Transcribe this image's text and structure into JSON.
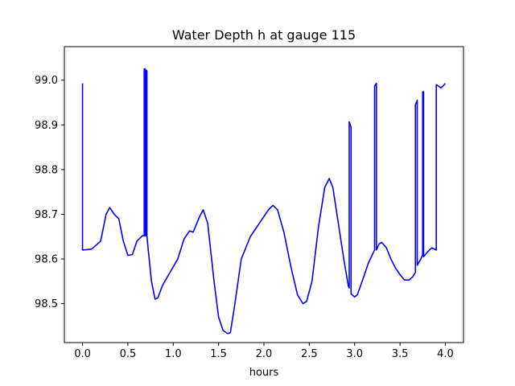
{
  "chart_data": {
    "type": "line",
    "title": "Water Depth h at gauge 115",
    "xlabel": "hours",
    "ylabel": "",
    "xlim": [
      -0.2,
      4.2
    ],
    "ylim": [
      98.413,
      99.075
    ],
    "xticks": [
      0.0,
      0.5,
      1.0,
      1.5,
      2.0,
      2.5,
      3.0,
      3.5,
      4.0
    ],
    "xtick_labels": [
      "0.0",
      "0.5",
      "1.0",
      "1.5",
      "2.0",
      "2.5",
      "3.0",
      "3.5",
      "4.0"
    ],
    "yticks": [
      98.5,
      98.6,
      98.7,
      98.8,
      98.9,
      99.0
    ],
    "ytick_labels": [
      "98.5",
      "98.6",
      "98.7",
      "98.8",
      "98.9",
      "99.0"
    ],
    "grid": false,
    "series": [
      {
        "color": "#0000ff",
        "points": [
          [
            0.0,
            98.993
          ],
          [
            0.0,
            98.62
          ],
          [
            0.1,
            98.622
          ],
          [
            0.2,
            98.64
          ],
          [
            0.26,
            98.7
          ],
          [
            0.3,
            98.715
          ],
          [
            0.35,
            98.7
          ],
          [
            0.4,
            98.69
          ],
          [
            0.45,
            98.64
          ],
          [
            0.5,
            98.608
          ],
          [
            0.55,
            98.61
          ],
          [
            0.6,
            98.64
          ],
          [
            0.66,
            98.652
          ],
          [
            0.68,
            98.652
          ],
          [
            0.68,
            99.025
          ],
          [
            0.69,
            99.025
          ],
          [
            0.69,
            98.652
          ],
          [
            0.7,
            98.652
          ],
          [
            0.7,
            99.023
          ],
          [
            0.71,
            99.02
          ],
          [
            0.71,
            98.652
          ],
          [
            0.72,
            98.63
          ],
          [
            0.76,
            98.55
          ],
          [
            0.8,
            98.51
          ],
          [
            0.83,
            98.513
          ],
          [
            0.88,
            98.54
          ],
          [
            0.95,
            98.565
          ],
          [
            1.05,
            98.6
          ],
          [
            1.12,
            98.645
          ],
          [
            1.18,
            98.663
          ],
          [
            1.22,
            98.66
          ],
          [
            1.28,
            98.69
          ],
          [
            1.33,
            98.71
          ],
          [
            1.38,
            98.68
          ],
          [
            1.45,
            98.55
          ],
          [
            1.5,
            98.47
          ],
          [
            1.55,
            98.44
          ],
          [
            1.6,
            98.433
          ],
          [
            1.63,
            98.435
          ],
          [
            1.68,
            98.5
          ],
          [
            1.75,
            98.6
          ],
          [
            1.85,
            98.65
          ],
          [
            1.95,
            98.68
          ],
          [
            2.05,
            98.71
          ],
          [
            2.1,
            98.72
          ],
          [
            2.15,
            98.71
          ],
          [
            2.22,
            98.66
          ],
          [
            2.3,
            98.58
          ],
          [
            2.37,
            98.52
          ],
          [
            2.43,
            98.5
          ],
          [
            2.47,
            98.505
          ],
          [
            2.53,
            98.55
          ],
          [
            2.6,
            98.67
          ],
          [
            2.67,
            98.76
          ],
          [
            2.72,
            98.78
          ],
          [
            2.76,
            98.76
          ],
          [
            2.82,
            98.68
          ],
          [
            2.88,
            98.6
          ],
          [
            2.93,
            98.54
          ],
          [
            2.94,
            98.535
          ],
          [
            2.94,
            98.907
          ],
          [
            2.96,
            98.895
          ],
          [
            2.96,
            98.522
          ],
          [
            3.0,
            98.515
          ],
          [
            3.03,
            98.52
          ],
          [
            3.1,
            98.56
          ],
          [
            3.15,
            98.59
          ],
          [
            3.2,
            98.612
          ],
          [
            3.22,
            98.62
          ],
          [
            3.22,
            98.987
          ],
          [
            3.24,
            98.993
          ],
          [
            3.24,
            98.62
          ],
          [
            3.27,
            98.634
          ],
          [
            3.3,
            98.637
          ],
          [
            3.35,
            98.625
          ],
          [
            3.4,
            98.6
          ],
          [
            3.45,
            98.58
          ],
          [
            3.5,
            98.565
          ],
          [
            3.55,
            98.553
          ],
          [
            3.6,
            98.553
          ],
          [
            3.64,
            98.56
          ],
          [
            3.67,
            98.57
          ],
          [
            3.67,
            98.945
          ],
          [
            3.69,
            98.955
          ],
          [
            3.69,
            98.586
          ],
          [
            3.73,
            98.6
          ],
          [
            3.75,
            98.61
          ],
          [
            3.75,
            98.974
          ],
          [
            3.76,
            98.974
          ],
          [
            3.76,
            98.605
          ],
          [
            3.8,
            98.615
          ],
          [
            3.85,
            98.625
          ],
          [
            3.9,
            98.62
          ],
          [
            3.9,
            98.99
          ],
          [
            3.95,
            98.983
          ],
          [
            3.98,
            98.988
          ],
          [
            4.0,
            98.993
          ]
        ]
      }
    ]
  }
}
